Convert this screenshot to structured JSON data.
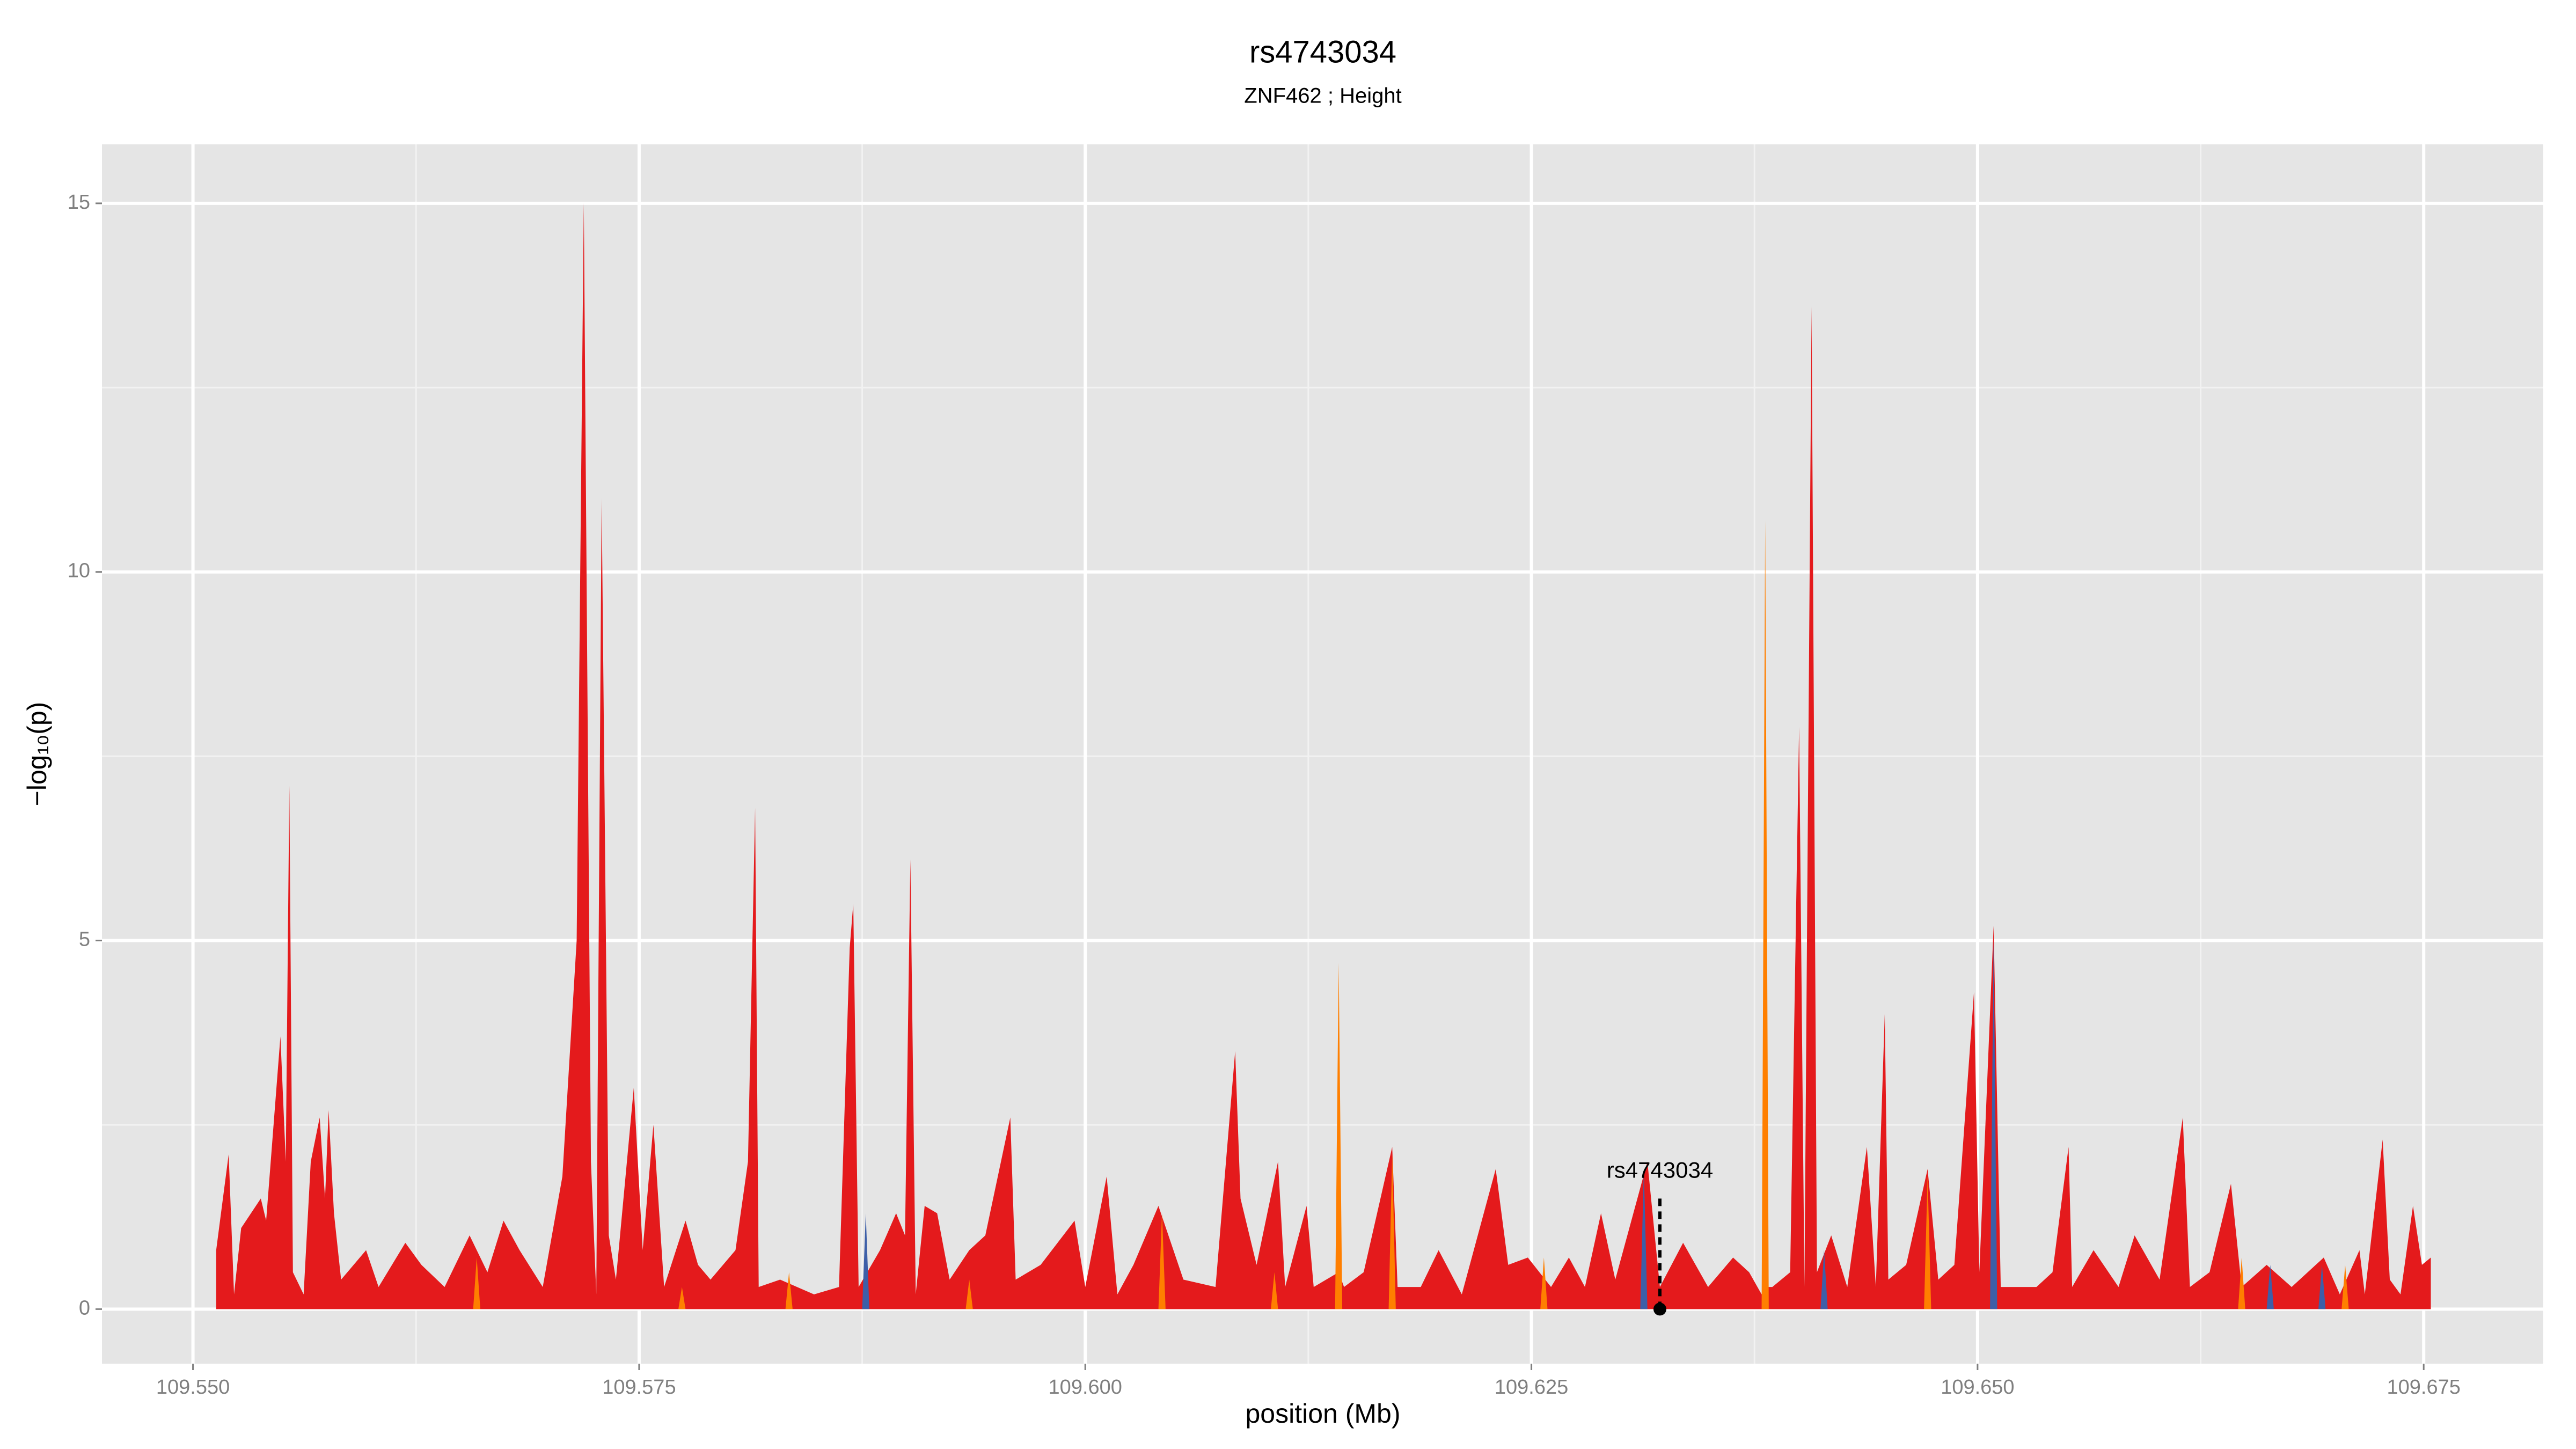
{
  "chart_data": {
    "type": "area",
    "title": "rs4743034",
    "subtitle": "ZNF462 ; Height",
    "x_label": "position (Mb)",
    "y_label": "−log₁₀(p)",
    "xlim": [
      109.5449,
      109.6817
    ],
    "ylim": [
      -0.74,
      15.8
    ],
    "xticks": [
      {
        "value": 109.55,
        "label": "109.550"
      },
      {
        "value": 109.575,
        "label": "109.575"
      },
      {
        "value": 109.6,
        "label": "109.600"
      },
      {
        "value": 109.625,
        "label": "109.625"
      },
      {
        "value": 109.65,
        "label": "109.650"
      },
      {
        "value": 109.675,
        "label": "109.675"
      }
    ],
    "yticks": [
      0,
      5,
      10,
      15
    ],
    "grid": true,
    "minor_grid": true,
    "series": [
      {
        "color": "#e41a1c",
        "x": [
          109.5513,
          109.552,
          109.5523,
          109.5527,
          109.5538,
          109.5541,
          109.5549,
          109.5552,
          109.5554,
          109.5556,
          109.5562,
          109.5566,
          109.5571,
          109.5574,
          109.5576,
          109.5579,
          109.5583,
          109.5597,
          109.5604,
          109.5619,
          109.5628,
          109.5641,
          109.5655,
          109.5665,
          109.5674,
          109.5683,
          109.5696,
          109.5707,
          109.5715,
          109.5719,
          109.5723,
          109.5726,
          109.5729,
          109.5733,
          109.5737,
          109.5747,
          109.5752,
          109.5758,
          109.5764,
          109.5776,
          109.5783,
          109.579,
          109.5804,
          109.5811,
          109.5815,
          109.5817,
          109.5829,
          109.5848,
          109.5862,
          109.5868,
          109.587,
          109.5873,
          109.5885,
          109.5894,
          109.5899,
          109.5902,
          109.5905,
          109.591,
          109.5917,
          109.5924,
          109.5935,
          109.5944,
          109.5958,
          109.5961,
          109.5975,
          109.5994,
          109.6,
          109.6012,
          109.6018,
          109.6027,
          109.6041,
          109.6055,
          109.6073,
          109.6084,
          109.6087,
          109.6096,
          109.6108,
          109.6112,
          109.6124,
          109.6128,
          109.6142,
          109.6145,
          109.6156,
          109.6172,
          109.6175,
          109.6188,
          109.6198,
          109.6211,
          109.623,
          109.6237,
          109.6248,
          109.6261,
          109.6271,
          109.628,
          109.6289,
          109.6297,
          109.6315,
          109.6322,
          109.6335,
          109.6349,
          109.6363,
          109.6372,
          109.6379,
          109.6381,
          109.6385,
          109.6395,
          109.64,
          109.6403,
          109.6407,
          109.641,
          109.6418,
          109.6427,
          109.6438,
          109.6443,
          109.6448,
          109.645,
          109.646,
          109.6472,
          109.6478,
          109.6487,
          109.6498,
          109.6501,
          109.6509,
          109.6513,
          109.6533,
          109.6542,
          109.6551,
          109.6553,
          109.6565,
          109.6579,
          109.6588,
          109.6602,
          109.6615,
          109.6619,
          109.663,
          109.6642,
          109.6648,
          109.6662,
          109.6676,
          109.6694,
          109.6703,
          109.6714,
          109.6717,
          109.6727,
          109.6731,
          109.6737,
          109.6744,
          109.6749,
          109.6754
        ],
        "values": [
          0.8,
          2.1,
          0.2,
          1.1,
          1.5,
          1.2,
          3.7,
          2.0,
          7.1,
          0.5,
          0.2,
          2.0,
          2.6,
          1.5,
          2.7,
          1.3,
          0.4,
          0.8,
          0.3,
          0.9,
          0.6,
          0.3,
          1.0,
          0.5,
          1.2,
          0.8,
          0.3,
          1.8,
          5.0,
          15.0,
          2.0,
          0.2,
          11.0,
          1.0,
          0.4,
          3.0,
          0.8,
          2.5,
          0.3,
          1.2,
          0.6,
          0.4,
          0.8,
          2.0,
          6.8,
          0.3,
          0.4,
          0.2,
          0.3,
          4.9,
          5.5,
          0.3,
          0.8,
          1.3,
          1.0,
          6.1,
          0.2,
          1.4,
          1.3,
          0.4,
          0.8,
          1.0,
          2.6,
          0.4,
          0.6,
          1.2,
          0.3,
          1.8,
          0.2,
          0.6,
          1.4,
          0.4,
          0.3,
          3.5,
          1.5,
          0.6,
          2.0,
          0.3,
          1.4,
          0.3,
          0.5,
          0.3,
          0.5,
          2.2,
          0.3,
          0.3,
          0.8,
          0.2,
          1.9,
          0.6,
          0.7,
          0.3,
          0.7,
          0.3,
          1.3,
          0.4,
          2.0,
          0.3,
          0.9,
          0.3,
          0.7,
          0.5,
          0.2,
          0.3,
          0.3,
          0.5,
          7.9,
          0.3,
          13.6,
          0.5,
          1.0,
          0.3,
          2.2,
          0.3,
          4.0,
          0.4,
          0.6,
          1.9,
          0.4,
          0.6,
          4.3,
          0.5,
          5.2,
          0.3,
          0.3,
          0.5,
          2.2,
          0.3,
          0.8,
          0.3,
          1.0,
          0.4,
          2.6,
          0.3,
          0.5,
          1.7,
          0.3,
          0.6,
          0.3,
          0.7,
          0.2,
          0.8,
          0.2,
          2.3,
          0.4,
          0.2,
          1.4,
          0.6,
          0.7
        ]
      },
      {
        "color": "#ff7f00",
        "x": [
          109.5657,
          109.5659,
          109.5661,
          109.5772,
          109.5774,
          109.5776,
          109.5832,
          109.5834,
          109.5836,
          109.5933,
          109.5935,
          109.5937,
          109.6041,
          109.6043,
          109.6045,
          109.6104,
          109.6106,
          109.6108,
          109.614,
          109.6142,
          109.6144,
          109.617,
          109.6172,
          109.6174,
          109.6255,
          109.6257,
          109.6259,
          109.6379,
          109.6381,
          109.6383,
          109.647,
          109.6472,
          109.6474,
          109.6646,
          109.6648,
          109.665,
          109.6704,
          109.6706,
          109.6708
        ],
        "values": [
          0,
          0.7,
          0,
          0,
          0.3,
          0,
          0,
          0.5,
          0,
          0,
          0.4,
          0,
          0,
          1.3,
          0,
          0,
          0.5,
          0,
          0,
          4.7,
          0,
          0,
          2.1,
          0,
          0,
          0.7,
          0,
          0,
          10.7,
          0,
          0,
          1.8,
          0,
          0,
          0.7,
          0,
          0,
          0.6,
          0
        ]
      },
      {
        "color": "#3d5fa8",
        "x": [
          109.5875,
          109.5877,
          109.5879,
          109.6311,
          109.6313,
          109.6315,
          109.6412,
          109.6414,
          109.6416,
          109.6507,
          109.6509,
          109.6511,
          109.6662,
          109.6664,
          109.6666,
          109.6691,
          109.6693,
          109.6695
        ],
        "values": [
          0,
          1.3,
          0,
          0,
          1.9,
          0,
          0,
          0.8,
          0,
          0,
          5.0,
          0,
          0,
          0.6,
          0,
          0,
          0.6,
          0
        ]
      }
    ],
    "annotation": {
      "text": "rs4743034",
      "x": 109.6322,
      "y": 0
    }
  }
}
